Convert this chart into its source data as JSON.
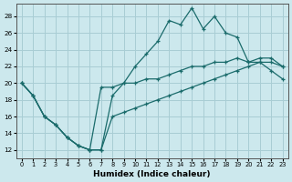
{
  "xlabel": "Humidex (Indice chaleur)",
  "bg_color": "#cce8ed",
  "line_color": "#1a6b6b",
  "grid_color": "#a8cdd4",
  "xlim": [
    -0.5,
    23.5
  ],
  "ylim": [
    11.0,
    29.5
  ],
  "xticks": [
    0,
    1,
    2,
    3,
    4,
    5,
    6,
    7,
    8,
    9,
    10,
    11,
    12,
    13,
    14,
    15,
    16,
    17,
    18,
    19,
    20,
    21,
    22,
    23
  ],
  "yticks": [
    12,
    14,
    16,
    18,
    20,
    22,
    24,
    26,
    28
  ],
  "curve_peak_x": [
    0,
    1,
    2,
    3,
    4,
    5,
    6,
    7,
    8,
    9,
    10,
    11,
    12,
    13,
    14,
    15,
    16,
    17,
    18,
    19,
    20,
    21,
    22,
    23
  ],
  "curve_peak_y": [
    20.0,
    18.5,
    16.0,
    15.0,
    13.5,
    12.5,
    12.0,
    12.0,
    18.5,
    20.0,
    22.0,
    23.5,
    25.0,
    27.5,
    27.0,
    29.0,
    26.5,
    28.0,
    26.0,
    25.5,
    22.5,
    23.0,
    23.0,
    22.0
  ],
  "curve_upper_x": [
    0,
    1,
    2,
    3,
    4,
    5,
    6,
    7,
    8,
    9,
    10,
    11,
    12,
    13,
    14,
    15,
    16,
    17,
    18,
    19,
    20,
    21,
    22,
    23
  ],
  "curve_upper_y": [
    20.0,
    18.5,
    16.0,
    15.0,
    13.5,
    12.5,
    12.0,
    19.5,
    19.5,
    20.0,
    20.0,
    20.5,
    20.5,
    21.0,
    21.5,
    22.0,
    22.0,
    22.5,
    22.5,
    23.0,
    22.5,
    22.5,
    22.5,
    22.0
  ],
  "curve_lower_x": [
    0,
    1,
    2,
    3,
    4,
    5,
    6,
    7,
    8,
    9,
    10,
    11,
    12,
    13,
    14,
    15,
    16,
    17,
    18,
    19,
    20,
    21,
    22,
    23
  ],
  "curve_lower_y": [
    20.0,
    18.5,
    16.0,
    15.0,
    13.5,
    12.5,
    12.0,
    12.0,
    16.0,
    16.5,
    17.0,
    17.5,
    18.0,
    18.5,
    19.0,
    19.5,
    20.0,
    20.5,
    21.0,
    21.5,
    22.0,
    22.5,
    21.5,
    20.5
  ]
}
